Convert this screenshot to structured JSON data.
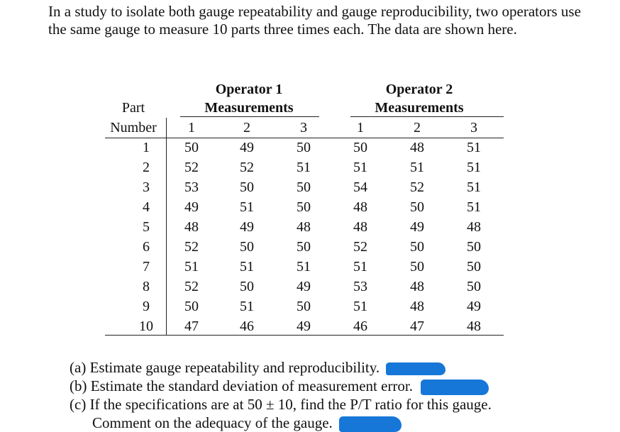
{
  "intro": "In a study to isolate both gauge repeatability and gauge reproducibility, two operators use the same gauge to measure 10 parts three times each. The data are shown here.",
  "table": {
    "part_header_1": "Part",
    "part_header_2": "Number",
    "operators": [
      {
        "title": "Operator 1",
        "subtitle": "Measurements",
        "trials": [
          "1",
          "2",
          "3"
        ]
      },
      {
        "title": "Operator 2",
        "subtitle": "Measurements",
        "trials": [
          "1",
          "2",
          "3"
        ]
      }
    ],
    "rows": [
      {
        "part": "1",
        "op1": [
          "50",
          "49",
          "50"
        ],
        "op2": [
          "50",
          "48",
          "51"
        ]
      },
      {
        "part": "2",
        "op1": [
          "52",
          "52",
          "51"
        ],
        "op2": [
          "51",
          "51",
          "51"
        ]
      },
      {
        "part": "3",
        "op1": [
          "53",
          "50",
          "50"
        ],
        "op2": [
          "54",
          "52",
          "51"
        ]
      },
      {
        "part": "4",
        "op1": [
          "49",
          "51",
          "50"
        ],
        "op2": [
          "48",
          "50",
          "51"
        ]
      },
      {
        "part": "5",
        "op1": [
          "48",
          "49",
          "48"
        ],
        "op2": [
          "48",
          "49",
          "48"
        ]
      },
      {
        "part": "6",
        "op1": [
          "52",
          "50",
          "50"
        ],
        "op2": [
          "52",
          "50",
          "50"
        ]
      },
      {
        "part": "7",
        "op1": [
          "51",
          "51",
          "51"
        ],
        "op2": [
          "51",
          "50",
          "50"
        ]
      },
      {
        "part": "8",
        "op1": [
          "52",
          "50",
          "49"
        ],
        "op2": [
          "53",
          "48",
          "50"
        ]
      },
      {
        "part": "9",
        "op1": [
          "50",
          "51",
          "50"
        ],
        "op2": [
          "51",
          "48",
          "49"
        ]
      },
      {
        "part": "10",
        "op1": [
          "47",
          "46",
          "49"
        ],
        "op2": [
          "46",
          "47",
          "48"
        ]
      }
    ]
  },
  "questions": [
    {
      "label": "(a)",
      "text": "Estimate gauge repeatability and reproducibility."
    },
    {
      "label": "(b)",
      "text": "Estimate the standard deviation of measurement error."
    },
    {
      "label": "(c)",
      "text": "If the specifications are at 50 ± 10, find the P/T ratio for this gauge.",
      "text2": "Comment on the adequacy of the gauge."
    }
  ],
  "redaction_color": "#1777d8"
}
